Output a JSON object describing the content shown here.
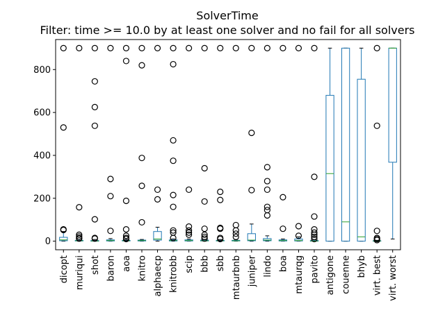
{
  "chart_data": {
    "type": "box",
    "title": "SolverTime",
    "subtitle": "Filter: time >= 10.0 by at least one solver and no fail for all solvers",
    "xlabel": "",
    "ylabel": "",
    "ylim": [
      -40,
      940
    ],
    "yticks": [
      0,
      200,
      400,
      600,
      800
    ],
    "colors": {
      "box": "#1f77b4",
      "median": "#2ca02c",
      "flier": "#000000"
    },
    "categories": [
      "dicopt",
      "muriqui",
      "shot",
      "baron",
      "aoa",
      "knitro",
      "alphaecp",
      "knitrobb",
      "scip",
      "bbb",
      "sbb",
      "mtaurbnb",
      "juniper",
      "lindo",
      "boa",
      "mtaurqg",
      "pavito",
      "antigone",
      "couenne",
      "bhyb",
      "virt. best",
      "virt. worst"
    ],
    "boxes": [
      {
        "q1": 2,
        "med": 6,
        "q3": 18,
        "whislo": 0,
        "whishi": 45,
        "fliers": [
          55,
          52,
          530,
          900
        ]
      },
      {
        "q1": 1,
        "med": 2,
        "q3": 4,
        "whislo": 0,
        "whishi": 10,
        "fliers": [
          158,
          30,
          22,
          15,
          12,
          900
        ]
      },
      {
        "q1": 0,
        "med": 1,
        "q3": 3,
        "whislo": 0,
        "whishi": 8,
        "fliers": [
          745,
          625,
          538,
          102,
          15,
          12,
          900
        ]
      },
      {
        "q1": 1,
        "med": 3,
        "q3": 6,
        "whislo": 0,
        "whishi": 12,
        "fliers": [
          290,
          210,
          48,
          900
        ]
      },
      {
        "q1": 1,
        "med": 2,
        "q3": 4,
        "whislo": 0,
        "whishi": 8,
        "fliers": [
          840,
          188,
          55,
          25,
          15,
          10,
          900
        ]
      },
      {
        "q1": 1,
        "med": 3,
        "q3": 5,
        "whislo": 0,
        "whishi": 8,
        "fliers": [
          820,
          388,
          258,
          88,
          900
        ]
      },
      {
        "q1": 5,
        "med": 10,
        "q3": 45,
        "whislo": 0,
        "whishi": 65,
        "fliers": [
          240,
          195,
          900
        ]
      },
      {
        "q1": 1,
        "med": 3,
        "q3": 6,
        "whislo": 0,
        "whishi": 10,
        "fliers": [
          825,
          470,
          375,
          215,
          160,
          50,
          40,
          15,
          900
        ]
      },
      {
        "q1": 1,
        "med": 3,
        "q3": 6,
        "whislo": 0,
        "whishi": 10,
        "fliers": [
          240,
          68,
          50,
          40,
          30,
          900
        ]
      },
      {
        "q1": 1,
        "med": 2,
        "q3": 5,
        "whislo": 0,
        "whishi": 8,
        "fliers": [
          340,
          185,
          58,
          30,
          20,
          12,
          900
        ]
      },
      {
        "q1": 1,
        "med": 2,
        "q3": 4,
        "whislo": 0,
        "whishi": 8,
        "fliers": [
          230,
          192,
          62,
          58,
          15,
          10,
          900
        ]
      },
      {
        "q1": 1,
        "med": 2,
        "q3": 4,
        "whislo": 0,
        "whishi": 8,
        "fliers": [
          75,
          50,
          35,
          20,
          900
        ]
      },
      {
        "q1": 2,
        "med": 5,
        "q3": 35,
        "whislo": 0,
        "whishi": 80,
        "fliers": [
          505,
          238,
          900
        ]
      },
      {
        "q1": 2,
        "med": 5,
        "q3": 12,
        "whislo": 0,
        "whishi": 25,
        "fliers": [
          345,
          280,
          240,
          160,
          145,
          120,
          900
        ]
      },
      {
        "q1": 1,
        "med": 3,
        "q3": 6,
        "whislo": 0,
        "whishi": 10,
        "fliers": [
          205,
          58,
          900
        ]
      },
      {
        "q1": 1,
        "med": 3,
        "q3": 10,
        "whislo": 0,
        "whishi": 20,
        "fliers": [
          70,
          25,
          900
        ]
      },
      {
        "q1": 0,
        "med": 1,
        "q3": 3,
        "whislo": 0,
        "whishi": 6,
        "fliers": [
          300,
          115,
          55,
          40,
          30,
          20,
          10,
          900
        ]
      },
      {
        "q1": 0,
        "med": 315,
        "q3": 680,
        "whislo": 0,
        "whishi": 900,
        "fliers": []
      },
      {
        "q1": 0,
        "med": 90,
        "q3": 900,
        "whislo": 0,
        "whishi": 900,
        "fliers": []
      },
      {
        "q1": 0,
        "med": 20,
        "q3": 755,
        "whislo": 0,
        "whishi": 900,
        "fliers": []
      },
      {
        "q1": 0,
        "med": 1,
        "q3": 2,
        "whislo": 0,
        "whishi": 4,
        "fliers": [
          900,
          538,
          48,
          15,
          10,
          5
        ]
      },
      {
        "q1": 368,
        "med": 900,
        "q3": 900,
        "whislo": 10,
        "whishi": 900,
        "fliers": []
      }
    ]
  }
}
